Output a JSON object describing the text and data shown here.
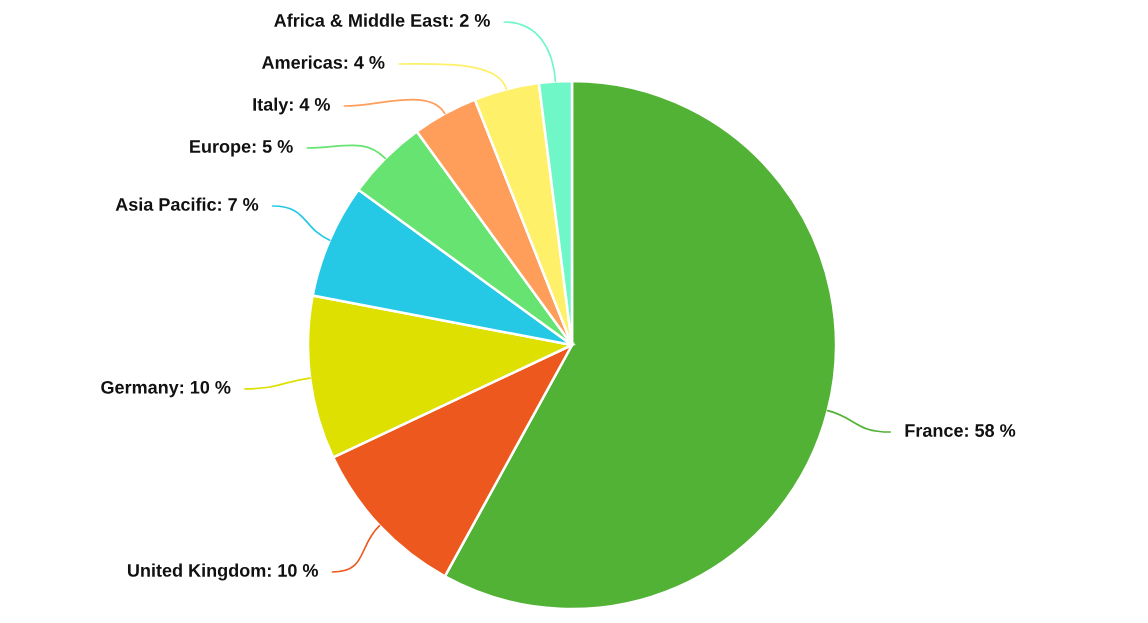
{
  "chart_data": {
    "type": "pie",
    "categories": [
      "France",
      "United Kingdom",
      "Germany",
      "Asia Pacific",
      "Europe",
      "Italy",
      "Americas",
      "Africa & Middle East"
    ],
    "values": [
      58,
      10,
      10,
      7,
      5,
      4,
      4,
      2
    ],
    "colors": [
      "#52b236",
      "#ec581e",
      "#dde000",
      "#26c9e5",
      "#66e370",
      "#ff9d5b",
      "#fff06a",
      "#6ff7c7"
    ],
    "value_labels": [
      "58 %",
      "10 %",
      "10 %",
      "7 %",
      "5 %",
      "4 %",
      "4 %",
      "2 %"
    ]
  }
}
